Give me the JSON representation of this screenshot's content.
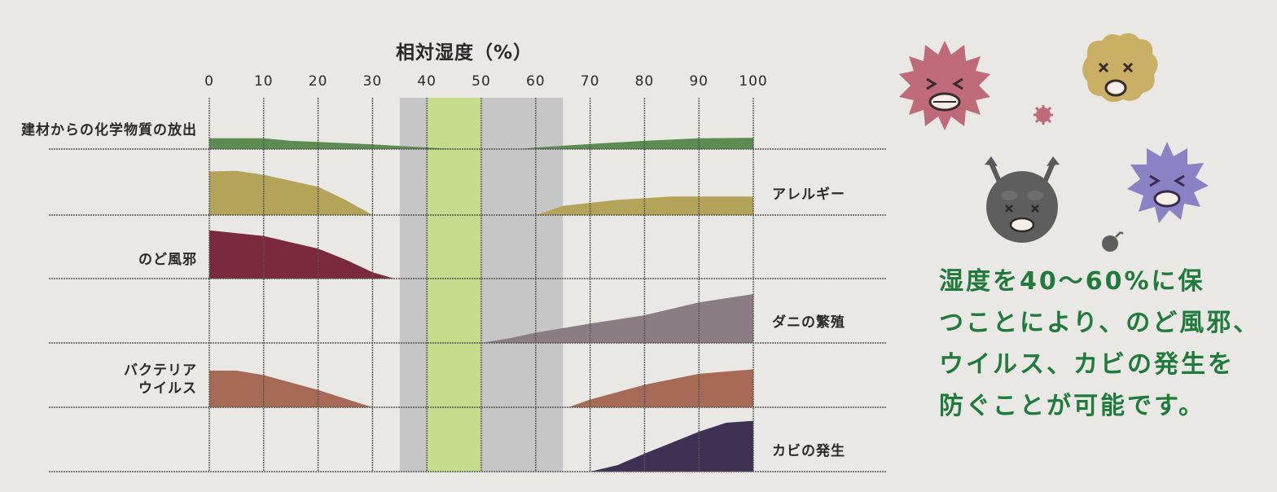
{
  "chart_data": {
    "type": "area",
    "title": "相対湿度（%）",
    "x_ticks": [
      "0",
      "10",
      "20",
      "30",
      "40",
      "50",
      "60",
      "70",
      "80",
      "90",
      "100"
    ],
    "xlim": [
      0,
      100
    ],
    "optimal_band": [
      40,
      50
    ],
    "acceptable_band": [
      35,
      65
    ],
    "series": [
      {
        "name": "建材からの化学物質の放出",
        "label_side": "left",
        "color": "#5c8c52",
        "points": [
          [
            0,
            0.21
          ],
          [
            10,
            0.21
          ],
          [
            15,
            0.16
          ],
          [
            20,
            0.14
          ],
          [
            30,
            0.09
          ],
          [
            40,
            0.03
          ],
          [
            45,
            0.0
          ],
          [
            57,
            0.0
          ],
          [
            60,
            0.03
          ],
          [
            70,
            0.1
          ],
          [
            80,
            0.16
          ],
          [
            90,
            0.21
          ],
          [
            100,
            0.22
          ]
        ]
      },
      {
        "name": "アレルギー",
        "label_side": "right",
        "color": "#b4a45a",
        "points": [
          [
            0,
            0.66
          ],
          [
            5,
            0.67
          ],
          [
            10,
            0.61
          ],
          [
            20,
            0.43
          ],
          [
            25,
            0.23
          ],
          [
            30,
            0.0
          ],
          [
            60,
            0.0
          ],
          [
            65,
            0.14
          ],
          [
            75,
            0.23
          ],
          [
            85,
            0.28
          ],
          [
            100,
            0.28
          ]
        ]
      },
      {
        "name": "のど風邪",
        "label_side": "left",
        "color": "#7a2a3c",
        "points": [
          [
            0,
            0.76
          ],
          [
            10,
            0.67
          ],
          [
            20,
            0.47
          ],
          [
            25,
            0.3
          ],
          [
            30,
            0.1
          ],
          [
            34,
            0.0
          ]
        ]
      },
      {
        "name": "ダニの繁殖",
        "label_side": "right",
        "color": "#8a7e84",
        "points": [
          [
            50,
            0.0
          ],
          [
            55,
            0.07
          ],
          [
            60,
            0.16
          ],
          [
            70,
            0.3
          ],
          [
            80,
            0.43
          ],
          [
            90,
            0.63
          ],
          [
            100,
            0.76
          ]
        ]
      },
      {
        "name": "バクテリア\nウイルス",
        "label_side": "left",
        "color": "#a66a56",
        "points": [
          [
            0,
            0.57
          ],
          [
            5,
            0.57
          ],
          [
            10,
            0.5
          ],
          [
            20,
            0.27
          ],
          [
            27,
            0.08
          ],
          [
            30,
            0.0
          ],
          [
            66,
            0.0
          ],
          [
            70,
            0.12
          ],
          [
            80,
            0.35
          ],
          [
            90,
            0.52
          ],
          [
            100,
            0.59
          ]
        ]
      },
      {
        "name": "カビの発生",
        "label_side": "right",
        "color": "#3f3154",
        "points": [
          [
            70,
            0.0
          ],
          [
            75,
            0.1
          ],
          [
            80,
            0.28
          ],
          [
            85,
            0.45
          ],
          [
            90,
            0.62
          ],
          [
            95,
            0.76
          ],
          [
            100,
            0.79
          ]
        ]
      }
    ]
  },
  "message": {
    "lines": [
      "湿度を40～60%に保",
      "つことにより、のど風邪、",
      "ウイルス、カビの発生を",
      "防ぐことが可能です。"
    ]
  },
  "colors": {
    "background": "#e9e8e4",
    "optimal_band": "#c4dc8c",
    "acceptable_band": "#c6c6c6",
    "grid": "#555555",
    "message": "#1f7a3c"
  },
  "illustration": {
    "icons": [
      "red-germ-icon",
      "yellow-germ-icon",
      "small-pink-germ-icon",
      "gray-germ-icon",
      "purple-germ-icon",
      "small-gray-germ-icon"
    ]
  }
}
